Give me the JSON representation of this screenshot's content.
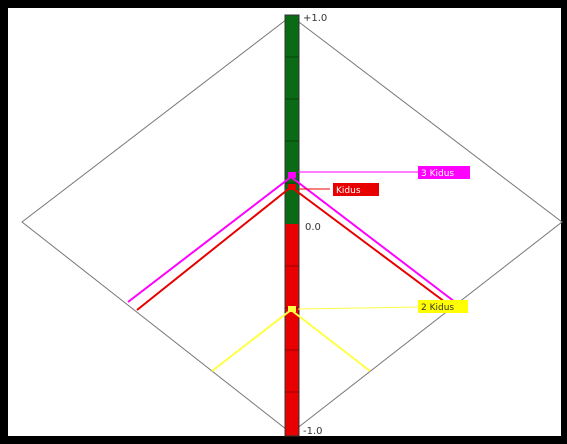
{
  "scale": {
    "top_label": "+1.0",
    "middle_label": "0.0",
    "bottom_label": "-1.0",
    "positive_color": "#0a6b14",
    "negative_color": "#e80000"
  },
  "markers": [
    {
      "label": "3 Kidus",
      "color": "#ff00ff",
      "text_color": "#ffffff"
    },
    {
      "label": "Kidus",
      "color": "#e80000",
      "text_color": "#ffffff"
    },
    {
      "label": "2 Kidus",
      "color": "#ffff00",
      "text_color": "#333333"
    }
  ],
  "colors": {
    "border": "#000000",
    "diamond": "#777777"
  }
}
